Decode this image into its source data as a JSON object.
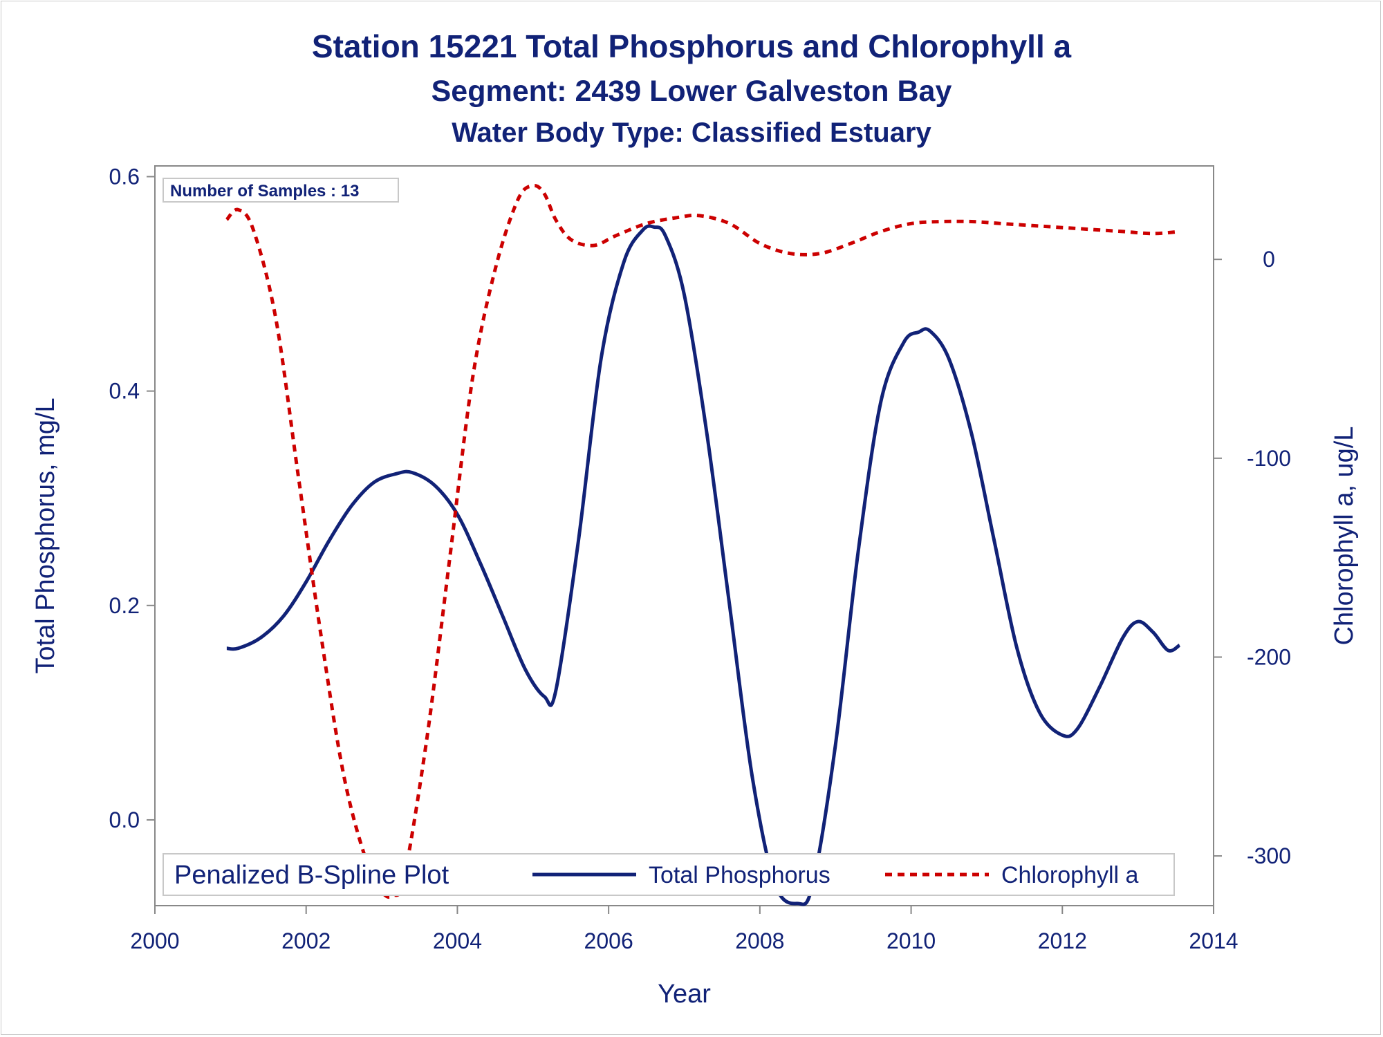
{
  "chart_data": {
    "type": "line",
    "title": "Station 15221  Total Phosphorus and Chlorophyll a",
    "subtitle": "Segment: 2439  Lower Galveston Bay",
    "subtitle2": "Water Body Type: Classified Estuary",
    "xlabel": "Year",
    "ylabel": "Total Phosphorus, mg/L",
    "y2label": "Chlorophyll a, ug/L",
    "xlim": [
      2000,
      2014
    ],
    "ylim": [
      -0.08,
      0.61
    ],
    "y2lim": [
      -325,
      47
    ],
    "x_ticks": [
      "2000",
      "2002",
      "2004",
      "2006",
      "2008",
      "2010",
      "2012",
      "2014"
    ],
    "y_ticks": [
      "0.0",
      "0.2",
      "0.4",
      "0.6"
    ],
    "y2_ticks": [
      "-300",
      "-200",
      "-100",
      "0"
    ],
    "grid": false,
    "inset_label": "Number of Samples : 13",
    "legend": {
      "title": "Penalized B-Spline Plot",
      "position": "bottom-inside",
      "entries": [
        "Total Phosphorus",
        "Chlorophyll a"
      ]
    },
    "colors": {
      "phosphorus": "#112277",
      "chlorophyll": "#cc0000",
      "text": "#112277",
      "axis": "#888888"
    },
    "series": [
      {
        "name": "Total Phosphorus",
        "axis": "left",
        "style": "solid",
        "x": [
          2000.95,
          2001.1,
          2001.4,
          2001.7,
          2002.0,
          2002.3,
          2002.6,
          2002.9,
          2003.2,
          2003.4,
          2003.7,
          2004.0,
          2004.3,
          2004.6,
          2004.9,
          2005.15,
          2005.3,
          2005.6,
          2005.9,
          2006.2,
          2006.45,
          2006.6,
          2006.75,
          2007.0,
          2007.3,
          2007.6,
          2007.9,
          2008.2,
          2008.5,
          2008.7,
          2009.0,
          2009.3,
          2009.6,
          2009.9,
          2010.1,
          2010.25,
          2010.5,
          2010.8,
          2011.1,
          2011.4,
          2011.7,
          2012.0,
          2012.2,
          2012.5,
          2012.8,
          2013.0,
          2013.2,
          2013.4,
          2013.55
        ],
        "y": [
          0.16,
          0.16,
          0.17,
          0.19,
          0.222,
          0.26,
          0.293,
          0.315,
          0.323,
          0.324,
          0.312,
          0.285,
          0.24,
          0.19,
          0.14,
          0.115,
          0.12,
          0.26,
          0.43,
          0.52,
          0.55,
          0.553,
          0.545,
          0.49,
          0.36,
          0.2,
          0.04,
          -0.06,
          -0.078,
          -0.06,
          0.07,
          0.25,
          0.39,
          0.445,
          0.455,
          0.456,
          0.43,
          0.36,
          0.26,
          0.16,
          0.1,
          0.079,
          0.085,
          0.125,
          0.17,
          0.185,
          0.175,
          0.158,
          0.163
        ]
      },
      {
        "name": "Chlorophyll a",
        "axis": "right",
        "style": "dashed",
        "x": [
          2000.95,
          2001.1,
          2001.3,
          2001.6,
          2001.9,
          2002.2,
          2002.5,
          2002.8,
          2003.0,
          2003.15,
          2003.3,
          2003.6,
          2003.9,
          2004.2,
          2004.5,
          2004.8,
          2005.0,
          2005.15,
          2005.3,
          2005.5,
          2005.8,
          2006.1,
          2006.5,
          2006.9,
          2007.2,
          2007.6,
          2008.0,
          2008.4,
          2008.8,
          2009.2,
          2009.6,
          2010.0,
          2010.4,
          2010.8,
          2011.2,
          2011.6,
          2012.0,
          2012.4,
          2012.8,
          2013.2,
          2013.55
        ],
        "y": [
          20,
          25,
          15,
          -30,
          -110,
          -190,
          -260,
          -303,
          -318,
          -320,
          -310,
          -240,
          -150,
          -60,
          -5,
          30,
          37,
          33,
          20,
          10,
          7,
          12,
          18,
          21,
          22,
          18,
          8,
          3,
          3,
          8,
          14,
          18,
          19,
          19,
          18,
          17,
          16,
          15,
          14,
          13,
          14
        ]
      }
    ]
  }
}
